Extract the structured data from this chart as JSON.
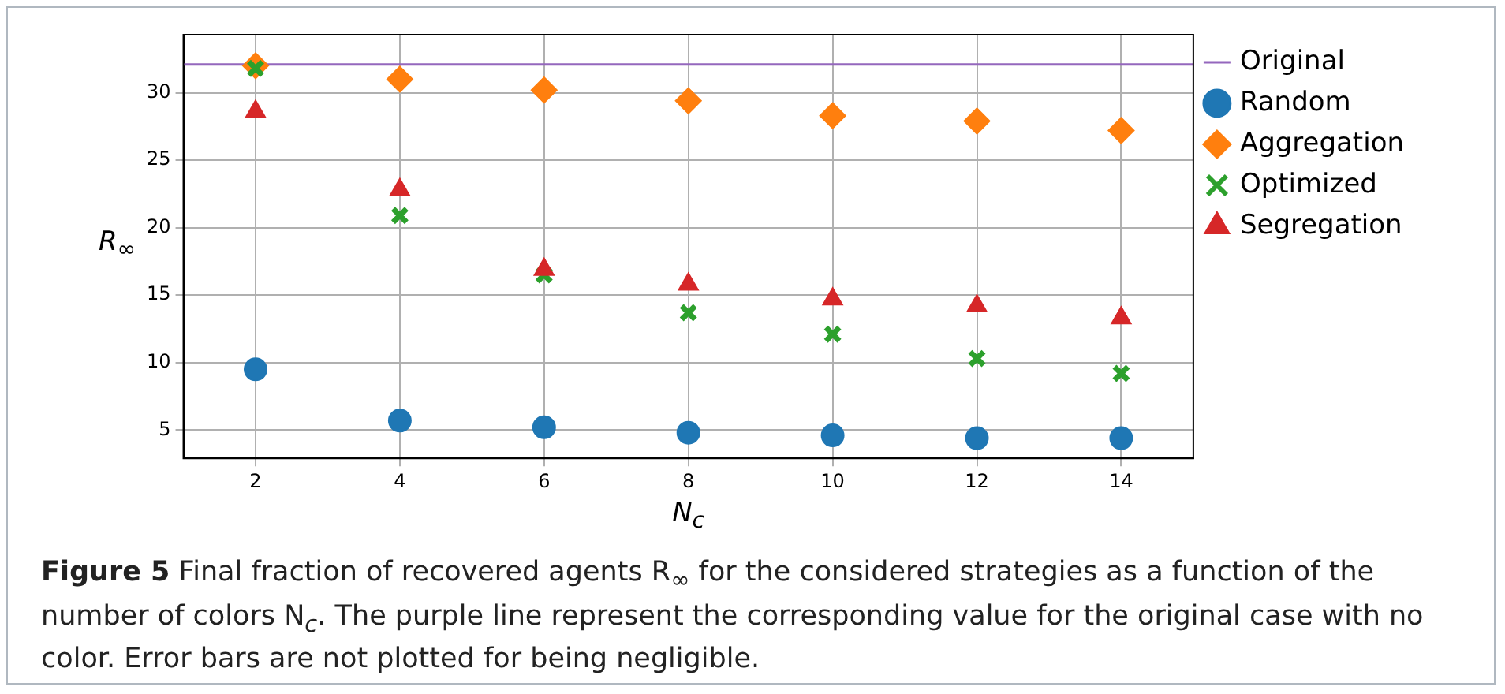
{
  "chart_data": {
    "type": "scatter",
    "xlabel": "N$_{c}$",
    "ylabel": "R$_{∞}$",
    "x": [
      2,
      4,
      6,
      8,
      10,
      12,
      14
    ],
    "xlim": [
      1,
      15
    ],
    "xticks": [
      2,
      4,
      6,
      8,
      10,
      12,
      14
    ],
    "ylim": [
      2.9,
      34.3
    ],
    "yticks": [
      5,
      10,
      15,
      20,
      25,
      30
    ],
    "grid": true,
    "legend": "right",
    "series": [
      {
        "name": "Original",
        "type": "line",
        "marker": "none",
        "color": "#9467bd",
        "x": [
          1,
          15
        ],
        "values": [
          32.1,
          32.1
        ]
      },
      {
        "name": "Random",
        "marker": "circle",
        "color": "#1f77b4",
        "values": [
          9.5,
          5.7,
          5.2,
          4.8,
          4.6,
          4.4,
          4.4
        ]
      },
      {
        "name": "Aggregation",
        "marker": "diamond",
        "color": "#ff7f0e",
        "values": [
          32.0,
          31.0,
          30.2,
          29.4,
          28.3,
          27.9,
          27.2
        ]
      },
      {
        "name": "Optimized",
        "marker": "cross",
        "color": "#2ca02c",
        "values": [
          31.8,
          20.9,
          16.5,
          13.7,
          12.1,
          10.3,
          9.2
        ]
      },
      {
        "name": "Segregation",
        "marker": "triangle",
        "color": "#d62728",
        "values": [
          28.6,
          22.8,
          16.9,
          15.8,
          14.7,
          14.2,
          13.3
        ]
      }
    ],
    "annotations": [
      "Figure 5",
      "Final fraction of recovered agents R$_{∞}$ for the considered strategies as a function of the number of colors N$_{c}$. The purple line represent the corresponding value for the original case with no color. Error bars are not plotted for being negligible."
    ]
  }
}
